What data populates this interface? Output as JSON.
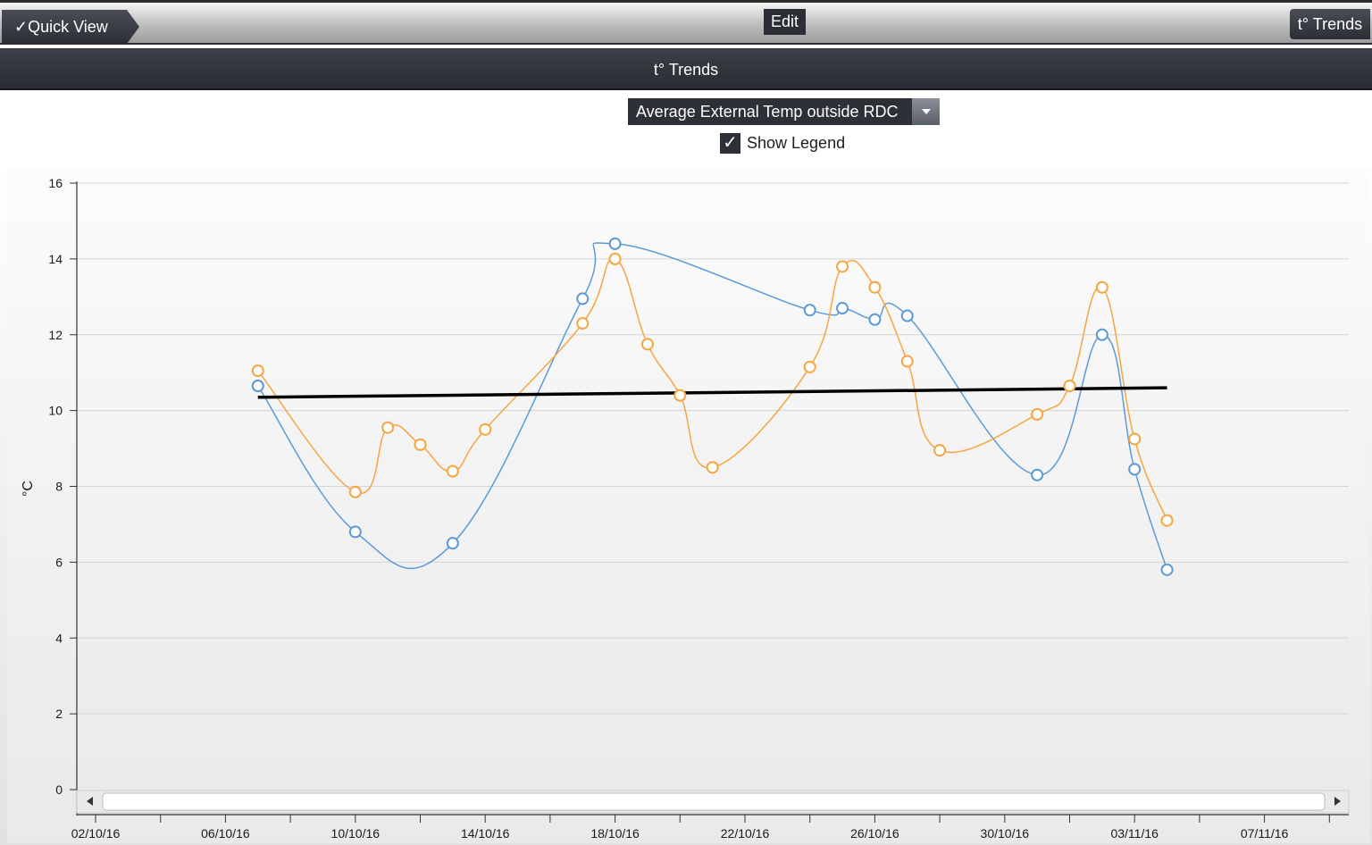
{
  "toolbar": {
    "quick_view_label": "✓Quick View",
    "edit_label": "Edit",
    "trends_tab_label": "t° Trends"
  },
  "panel": {
    "title": "t° Trends",
    "selected_sensor": "Average External Temp outside RDC",
    "show_legend_label": "Show Legend",
    "show_legend_checked": true,
    "checkmark": "✓"
  },
  "chart_data": {
    "type": "line",
    "title": "",
    "xlabel": "",
    "ylabel": "°C",
    "ylim": [
      0,
      16
    ],
    "yticks": [
      0,
      2,
      4,
      6,
      8,
      10,
      12,
      14,
      16
    ],
    "xlim": [
      "02/10/16",
      "09/11/16"
    ],
    "xtick_labels": [
      "02/10/16",
      "06/10/16",
      "10/10/16",
      "14/10/16",
      "18/10/16",
      "22/10/16",
      "26/10/16",
      "30/10/16",
      "03/11/16",
      "07/11/16"
    ],
    "grid": true,
    "series": [
      {
        "color": "#5b9bd5",
        "points": [
          {
            "x": "07/10/16",
            "y": 10.65
          },
          {
            "x": "10/10/16",
            "y": 6.8
          },
          {
            "x": "13/10/16",
            "y": 6.5
          },
          {
            "x": "17/10/16",
            "y": 12.95
          },
          {
            "x": "18/10/16",
            "y": 14.4
          },
          {
            "x": "24/10/16",
            "y": 12.65
          },
          {
            "x": "25/10/16",
            "y": 12.7
          },
          {
            "x": "26/10/16",
            "y": 12.4
          },
          {
            "x": "27/10/16",
            "y": 12.5
          },
          {
            "x": "31/10/16",
            "y": 8.3
          },
          {
            "x": "02/11/16",
            "y": 12.0
          },
          {
            "x": "03/11/16",
            "y": 8.45
          },
          {
            "x": "04/11/16",
            "y": 5.8
          }
        ]
      },
      {
        "color": "#f5a542",
        "points": [
          {
            "x": "07/10/16",
            "y": 11.05
          },
          {
            "x": "10/10/16",
            "y": 7.85
          },
          {
            "x": "11/10/16",
            "y": 9.55
          },
          {
            "x": "12/10/16",
            "y": 9.1
          },
          {
            "x": "13/10/16",
            "y": 8.4
          },
          {
            "x": "14/10/16",
            "y": 9.5
          },
          {
            "x": "17/10/16",
            "y": 12.3
          },
          {
            "x": "18/10/16",
            "y": 14.0
          },
          {
            "x": "19/10/16",
            "y": 11.75
          },
          {
            "x": "20/10/16",
            "y": 10.4
          },
          {
            "x": "21/10/16",
            "y": 8.5
          },
          {
            "x": "24/10/16",
            "y": 11.15
          },
          {
            "x": "25/10/16",
            "y": 13.8
          },
          {
            "x": "26/10/16",
            "y": 13.25
          },
          {
            "x": "27/10/16",
            "y": 11.3
          },
          {
            "x": "28/10/16",
            "y": 8.95
          },
          {
            "x": "31/10/16",
            "y": 9.9
          },
          {
            "x": "01/11/16",
            "y": 10.65
          },
          {
            "x": "02/11/16",
            "y": 13.25
          },
          {
            "x": "03/11/16",
            "y": 9.25
          },
          {
            "x": "04/11/16",
            "y": 7.1
          }
        ]
      },
      {
        "color": "#000000",
        "points": [
          {
            "x": "07/10/16",
            "y": 10.35
          },
          {
            "x": "04/11/16",
            "y": 10.6
          }
        ]
      }
    ]
  }
}
